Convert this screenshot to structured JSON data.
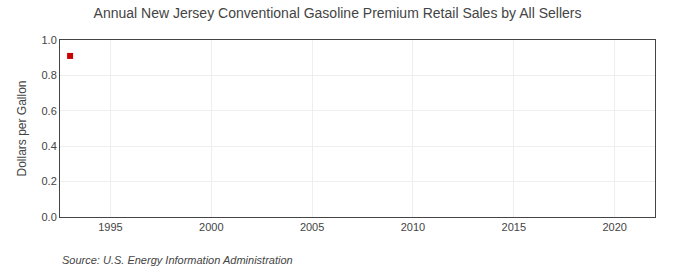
{
  "chart_data": {
    "type": "scatter",
    "title": "Annual New Jersey Conventional Gasoline Premium Retail Sales by All Sellers",
    "ylabel": "Dollars per Gallon",
    "annotations": [
      "Source: U.S. Energy Information Administration"
    ],
    "x": [
      1993
    ],
    "values": [
      0.91
    ],
    "color": "#cc0000",
    "marker": "square",
    "xlim": [
      1992.5,
      2022
    ],
    "xticks": [
      1995,
      2000,
      2005,
      2010,
      2015,
      2020
    ],
    "ylim": [
      0.0,
      1.0
    ],
    "yticks": [
      {
        "value": 0.0,
        "label": "0.0"
      },
      0.2,
      0.4,
      0.6,
      0.8,
      {
        "value": 1.0,
        "label": "1.0"
      }
    ],
    "grid": true
  }
}
